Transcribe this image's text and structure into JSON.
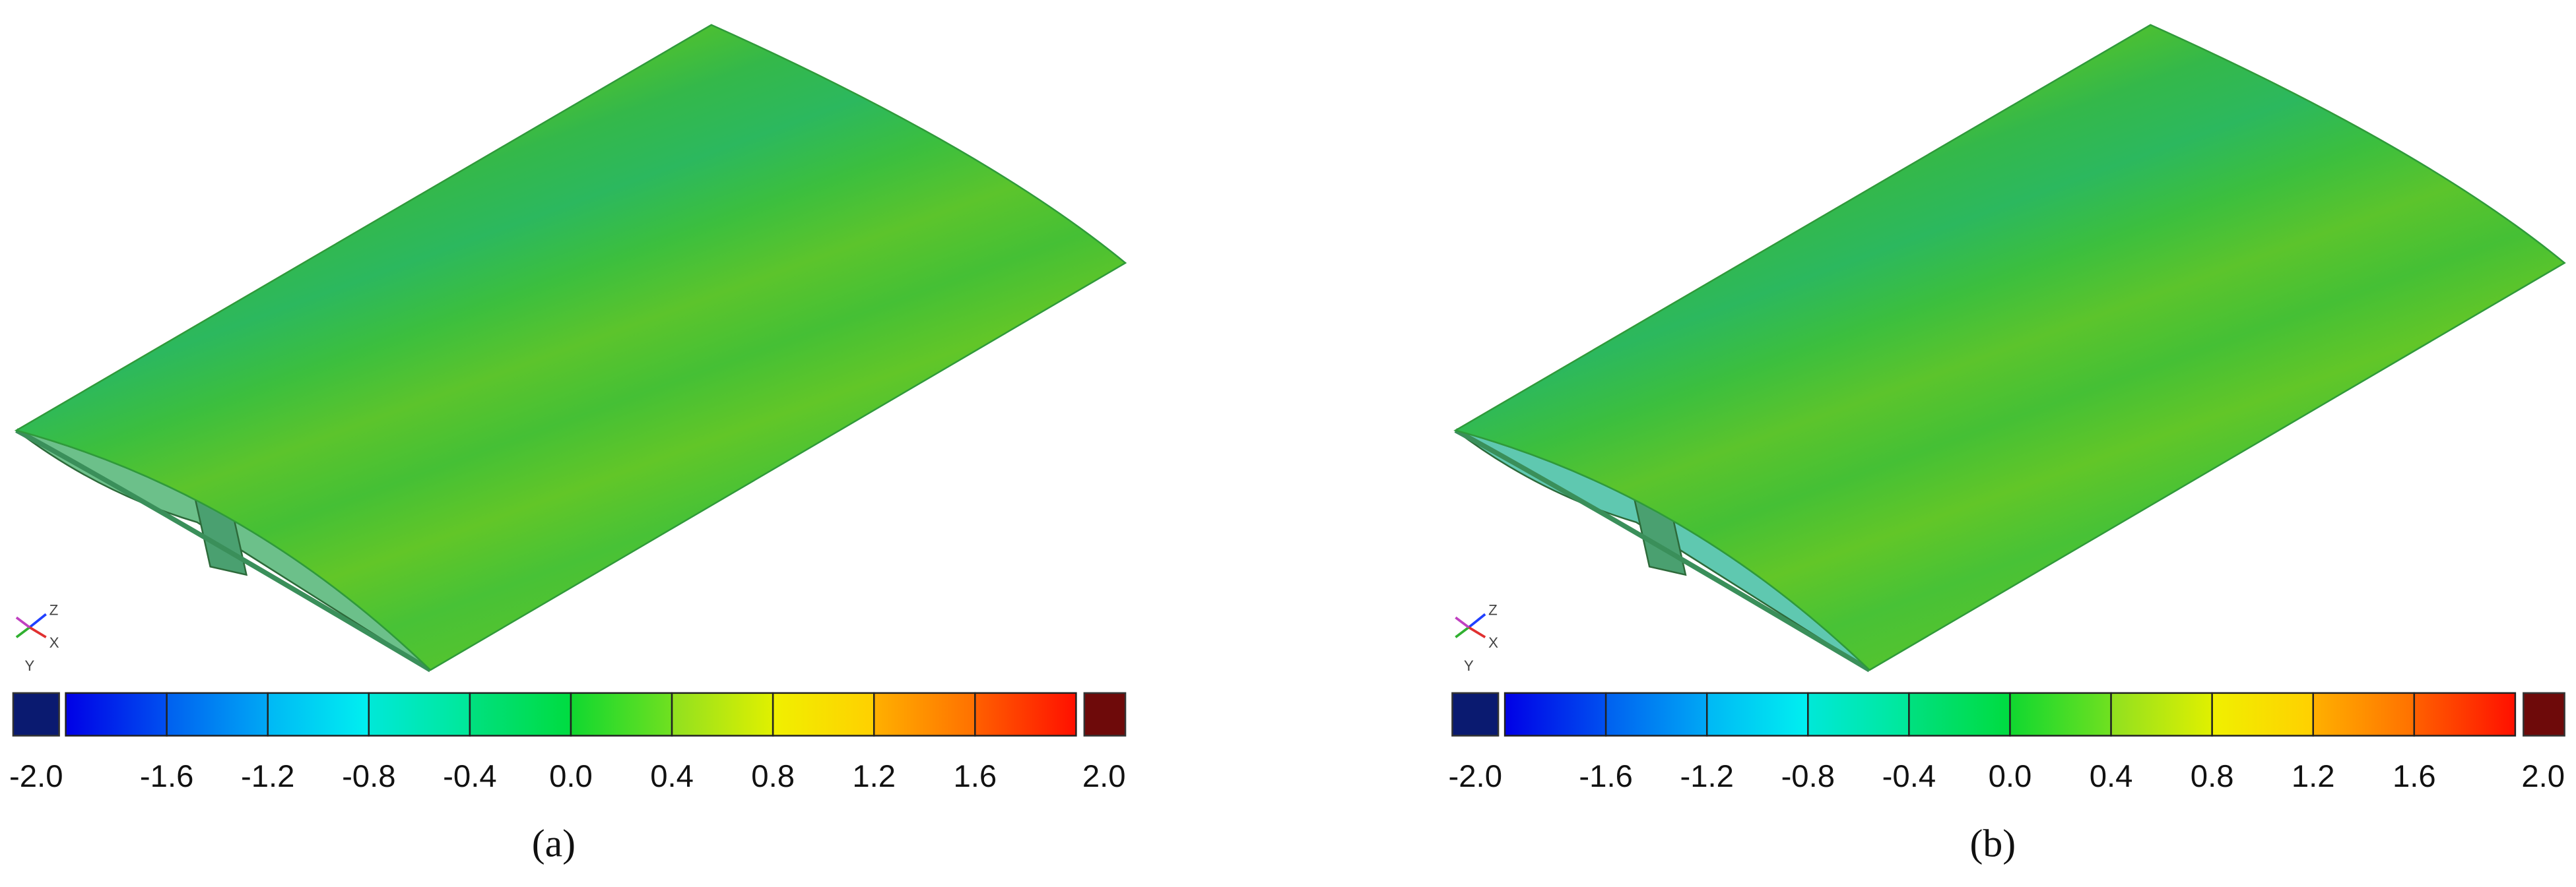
{
  "panels": [
    {
      "label": "(a)",
      "axes": [
        "Z",
        "X",
        "Y"
      ],
      "colorbar": {
        "ticks": [
          "-2.0",
          "-1.6",
          "-1.2",
          "-0.8",
          "-0.4",
          "0.0",
          "0.4",
          "0.8",
          "1.2",
          "1.6",
          "2.0"
        ]
      }
    },
    {
      "label": "(b)",
      "axes": [
        "Z",
        "X",
        "Y"
      ],
      "colorbar": {
        "ticks": [
          "-2.0",
          "-1.6",
          "-1.2",
          "-0.8",
          "-0.4",
          "0.0",
          "0.4",
          "0.8",
          "1.2",
          "1.6",
          "2.0"
        ]
      }
    }
  ]
}
